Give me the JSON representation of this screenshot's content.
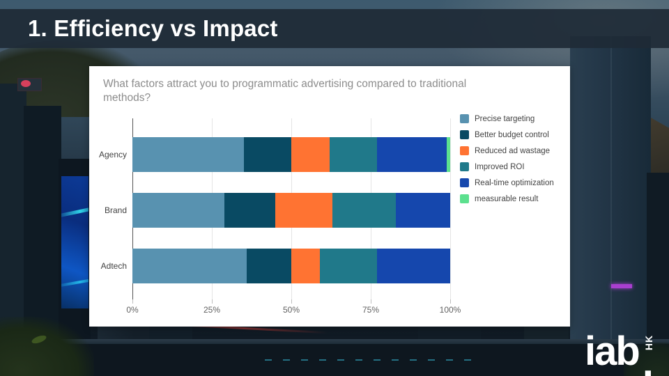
{
  "header": {
    "title": "1. Efficiency vs Impact"
  },
  "logo": {
    "name": "iab",
    "dot": ".",
    "region": "HK"
  },
  "chart_data": {
    "type": "bar",
    "orientation": "horizontal",
    "stacked": true,
    "title": "What factors attract you to programmatic advertising compared to traditional methods?",
    "categories": [
      "Agency",
      "Brand",
      "Adtech"
    ],
    "series": [
      {
        "name": "Precise targeting",
        "color": "#5892b0",
        "values": [
          35,
          29,
          36
        ]
      },
      {
        "name": "Better budget control",
        "color": "#094a63",
        "values": [
          15,
          16,
          14
        ]
      },
      {
        "name": "Reduced ad wastage",
        "color": "#ff7332",
        "values": [
          12,
          18,
          9
        ]
      },
      {
        "name": "Improved ROI",
        "color": "#20798a",
        "values": [
          15,
          20,
          18
        ]
      },
      {
        "name": "Real-time optimization",
        "color": "#1547ad",
        "values": [
          22,
          17,
          23
        ]
      },
      {
        "name": "measurable result",
        "color": "#5ce08e",
        "values": [
          1,
          0,
          0
        ]
      }
    ],
    "x_ticks": [
      "0%",
      "25%",
      "50%",
      "75%",
      "100%"
    ],
    "xlim": [
      0,
      100
    ],
    "grid": true,
    "legend_position": "right"
  }
}
